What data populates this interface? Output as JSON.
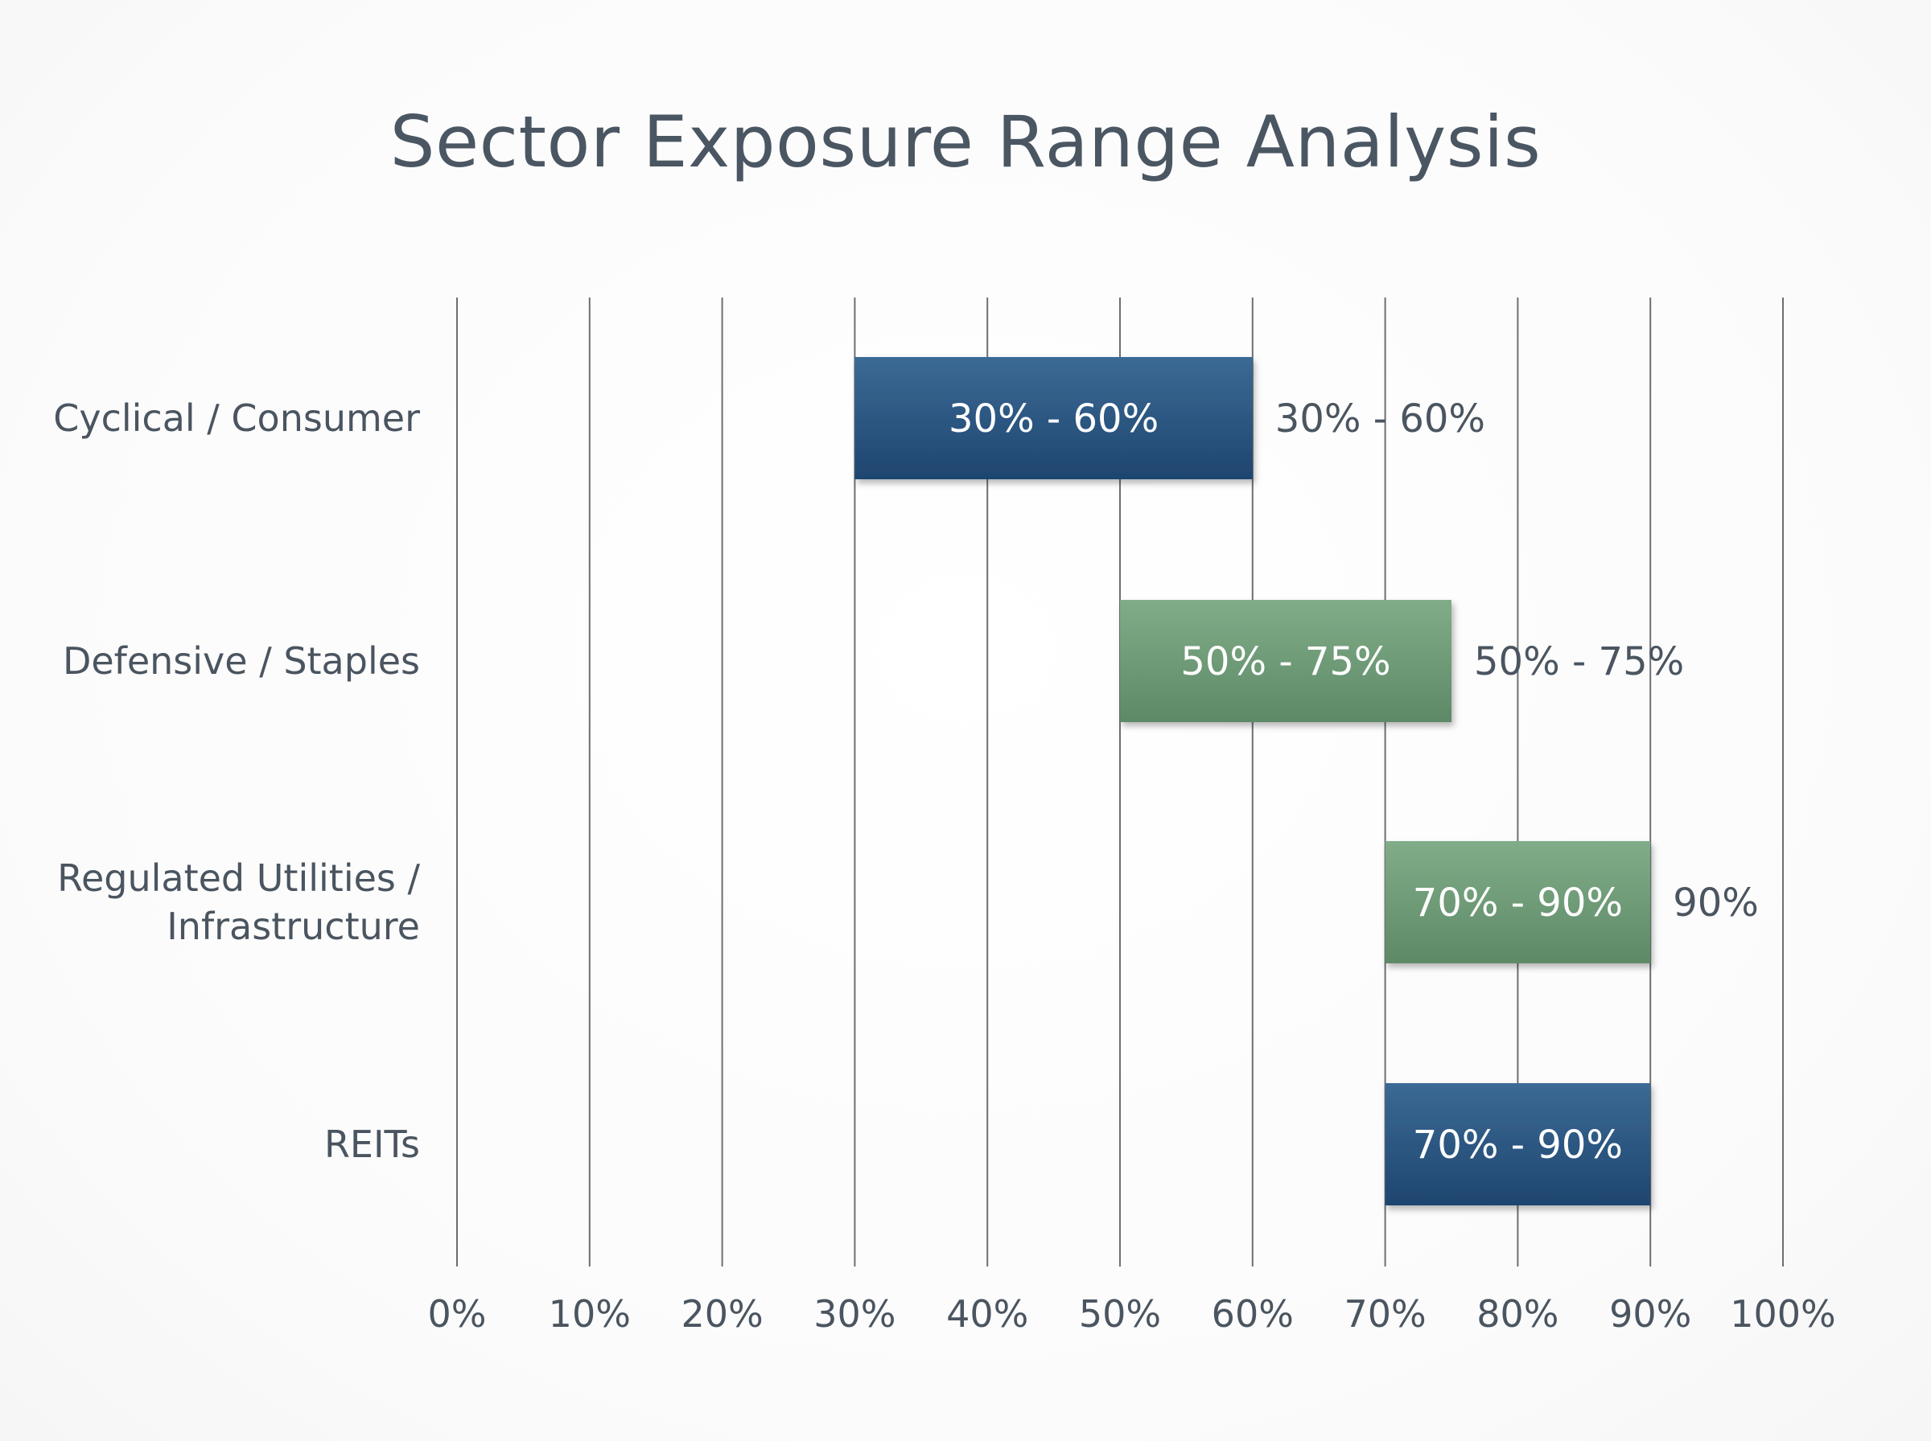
{
  "chart_data": {
    "type": "bar",
    "orientation": "horizontal-range",
    "title": "Sector Exposure Range Analysis",
    "xlabel": "",
    "ylabel": "",
    "xlim": [
      0,
      100
    ],
    "x_ticks": [
      "0%",
      "10%",
      "20%",
      "30%",
      "40%",
      "50%",
      "60%",
      "70%",
      "80%",
      "90%",
      "100%"
    ],
    "grid": "vertical",
    "legend": "none",
    "categories": [
      {
        "label_lines": [
          "Cyclical / Consumer"
        ],
        "start": 30,
        "end": 60,
        "bar_label": "30% - 60%",
        "outside_label": "30% - 60%",
        "color": "#2c5582"
      },
      {
        "label_lines": [
          "Defensive / Staples"
        ],
        "start": 50,
        "end": 75,
        "bar_label": "50% - 75%",
        "outside_label": "50% - 75%",
        "color": "#6f9c78"
      },
      {
        "label_lines": [
          "Regulated Utilities /",
          "Infrastructure"
        ],
        "start": 70,
        "end": 90,
        "bar_label": "70% - 90%",
        "outside_label": "90%",
        "color": "#6f9c78"
      },
      {
        "label_lines": [
          "REITs"
        ],
        "start": 70,
        "end": 90,
        "bar_label": "70% - 90%",
        "outside_label": "",
        "color": "#2c5582"
      }
    ],
    "colors": {
      "blue_top": "#3a6792",
      "blue_bottom": "#1f4670",
      "green_top": "#7eab86",
      "green_bottom": "#5f8a68",
      "grid": "#6b6f73",
      "text": "#4a5560"
    }
  }
}
